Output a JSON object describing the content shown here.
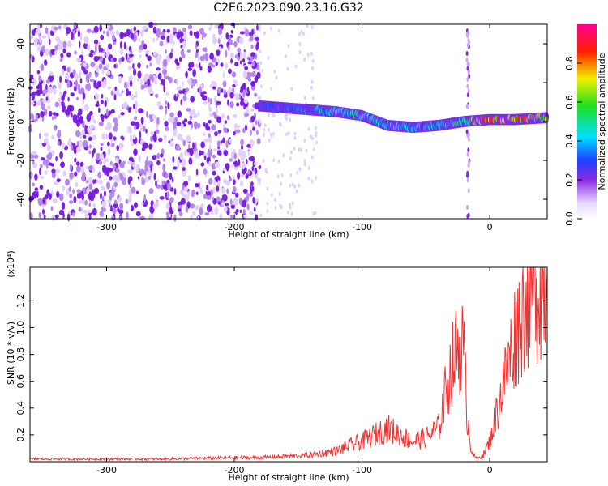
{
  "title": "C2E6.2023.090.23.16.G32",
  "chart_data": [
    {
      "type": "heatmap",
      "xlabel": "Height of straight line (km)",
      "ylabel": "Frequency (Hz)",
      "xlim": [
        -360,
        45
      ],
      "ylim": [
        -50,
        50
      ],
      "x_ticks": [
        -300,
        -200,
        -100,
        0
      ],
      "x_tick_labels": [
        "-300",
        "-200",
        "-100",
        "0"
      ],
      "y_ticks": [
        -40,
        -20,
        0,
        20,
        40
      ],
      "y_tick_labels": [
        "-40",
        "-20",
        "0",
        "20",
        "40"
      ],
      "colorbar": {
        "label": "Normalized spectral amplitude",
        "range": [
          0,
          1
        ],
        "ticks": [
          0.0,
          0.2,
          0.4,
          0.6,
          0.8
        ],
        "tick_labels": [
          "0.0",
          "0.2",
          "0.4",
          "0.6",
          "0.8"
        ],
        "colormap": "rainbow-white-violet-blue-cyan-green-yellow-red-magenta"
      },
      "signal_track": {
        "x": [
          -180,
          -160,
          -140,
          -120,
          -100,
          -80,
          -60,
          -40,
          -20,
          0,
          20,
          45
        ],
        "freq_hz": [
          8,
          7,
          6,
          5,
          3,
          -2,
          -3,
          -2,
          0,
          1,
          1,
          2
        ],
        "amplitude": [
          0.3,
          0.35,
          0.35,
          0.45,
          0.5,
          0.45,
          0.4,
          0.4,
          0.55,
          0.9,
          0.9,
          0.7
        ]
      },
      "noise_region_xmax": -180,
      "spike_x": -17
    },
    {
      "type": "line",
      "xlabel": "Height of straight line (km)",
      "ylabel": "SNR (10 * v/v)",
      "y_multiplier": "(x10⁴)",
      "xlim": [
        -360,
        45
      ],
      "ylim": [
        0,
        1.45
      ],
      "x_ticks": [
        -300,
        -200,
        -100,
        0
      ],
      "x_tick_labels": [
        "-300",
        "-200",
        "-100",
        "0"
      ],
      "y_ticks": [
        0.2,
        0.4,
        0.6,
        0.8,
        1.0,
        1.2
      ],
      "y_tick_labels": [
        "0.2",
        "0.4",
        "0.6",
        "0.8",
        "1.0",
        "1.2"
      ],
      "color": "#ee3333",
      "series": [
        {
          "x": [
            -360,
            -300,
            -250,
            -200,
            -180,
            -160,
            -140,
            -120,
            -110,
            -100,
            -90,
            -80,
            -70,
            -60,
            -50,
            -40,
            -35,
            -30,
            -25,
            -22,
            -20,
            -18,
            -15,
            -12,
            -10,
            -5,
            0,
            5,
            10,
            15,
            20,
            25,
            30,
            35,
            40,
            45
          ],
          "y": [
            0.02,
            0.02,
            0.02,
            0.03,
            0.03,
            0.04,
            0.05,
            0.08,
            0.12,
            0.15,
            0.2,
            0.25,
            0.2,
            0.15,
            0.18,
            0.25,
            0.5,
            0.7,
            0.85,
            0.9,
            0.75,
            0.4,
            0.12,
            0.04,
            0.02,
            0.05,
            0.15,
            0.35,
            0.55,
            0.75,
            0.95,
            1.1,
            1.22,
            1.3,
            1.33,
            1.34
          ]
        }
      ]
    }
  ]
}
